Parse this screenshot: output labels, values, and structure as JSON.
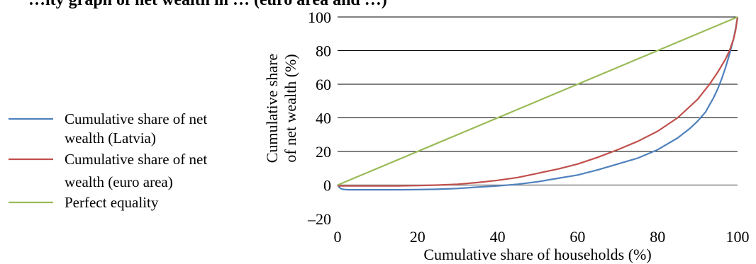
{
  "chart_data": {
    "type": "line",
    "title": "…ity graph of net wealth in … (euro area and …)",
    "xlabel": "Cumulative share of households (%)",
    "ylabel_lines": [
      "Cumulative share",
      "of net wealth (%)"
    ],
    "xlim": [
      0,
      100
    ],
    "ylim": [
      -20,
      100
    ],
    "xticks": [
      0,
      20,
      40,
      60,
      80,
      100
    ],
    "yticks": [
      100,
      80,
      60,
      40,
      20,
      0,
      -20
    ],
    "ytick_labels": [
      "100",
      "80",
      "60",
      "40",
      "20",
      "0",
      "–20"
    ],
    "grid": true,
    "legend_position": "left",
    "series": [
      {
        "name_lines": [
          "Cumulative share of net",
          "wealth (Latvia)"
        ],
        "color": "#4f81bd",
        "x": [
          0,
          0.5,
          1,
          2,
          3,
          5,
          10,
          15,
          20,
          25,
          30,
          35,
          40,
          45,
          50,
          55,
          60,
          65,
          70,
          75,
          80,
          85,
          88,
          90,
          92,
          94,
          95,
          96,
          97,
          98,
          99,
          99.5,
          100
        ],
        "y": [
          0,
          -1.5,
          -2.3,
          -2.7,
          -2.8,
          -2.8,
          -2.8,
          -2.8,
          -2.7,
          -2.5,
          -2,
          -1.2,
          -0.5,
          0.5,
          2,
          4,
          6,
          9,
          12.5,
          16,
          21,
          28,
          33.5,
          38,
          43.5,
          52,
          57,
          63,
          70,
          78,
          87,
          93,
          100
        ]
      },
      {
        "name_lines": [
          "Cumulative share of net",
          "wealth (euro area)"
        ],
        "color": "#c0504d",
        "x": [
          0,
          5,
          10,
          15,
          20,
          25,
          30,
          35,
          40,
          45,
          50,
          55,
          60,
          65,
          70,
          75,
          80,
          85,
          90,
          93,
          95,
          97,
          98,
          99,
          99.5,
          100
        ],
        "y": [
          -0.5,
          -0.5,
          -0.5,
          -0.5,
          -0.3,
          0,
          0.5,
          1.5,
          2.8,
          4.5,
          7,
          9.5,
          12.5,
          16.5,
          21,
          26,
          32,
          40,
          51,
          60,
          67,
          75,
          80,
          87,
          92,
          100
        ]
      },
      {
        "name_lines": [
          "Perfect equality"
        ],
        "color": "#9bbb59",
        "x": [
          0,
          100
        ],
        "y": [
          0,
          100
        ]
      }
    ]
  }
}
